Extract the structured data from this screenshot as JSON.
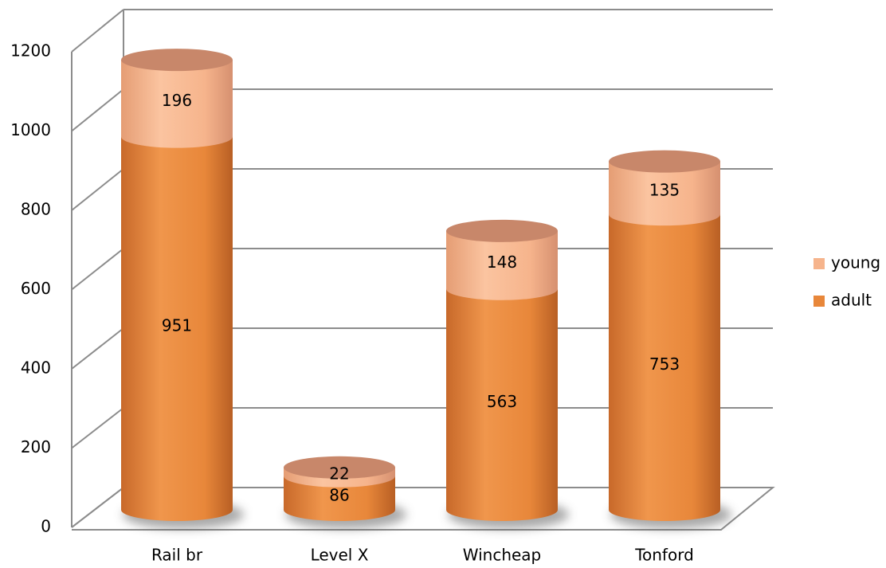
{
  "chart_data": {
    "type": "bar",
    "stacked": true,
    "three_d": true,
    "categories": [
      "Rail br",
      "Level  X",
      "Wincheap",
      "Tonford"
    ],
    "series": [
      {
        "name": "adult",
        "color": "#e8873a",
        "values": [
          951,
          86,
          563,
          753
        ]
      },
      {
        "name": "young",
        "color": "#f6b48c",
        "values": [
          196,
          22,
          148,
          135
        ]
      }
    ],
    "ylim": [
      0,
      1200
    ],
    "yticks": [
      0,
      200,
      400,
      600,
      800,
      1000,
      1200
    ],
    "grid": true,
    "legend": "right"
  }
}
